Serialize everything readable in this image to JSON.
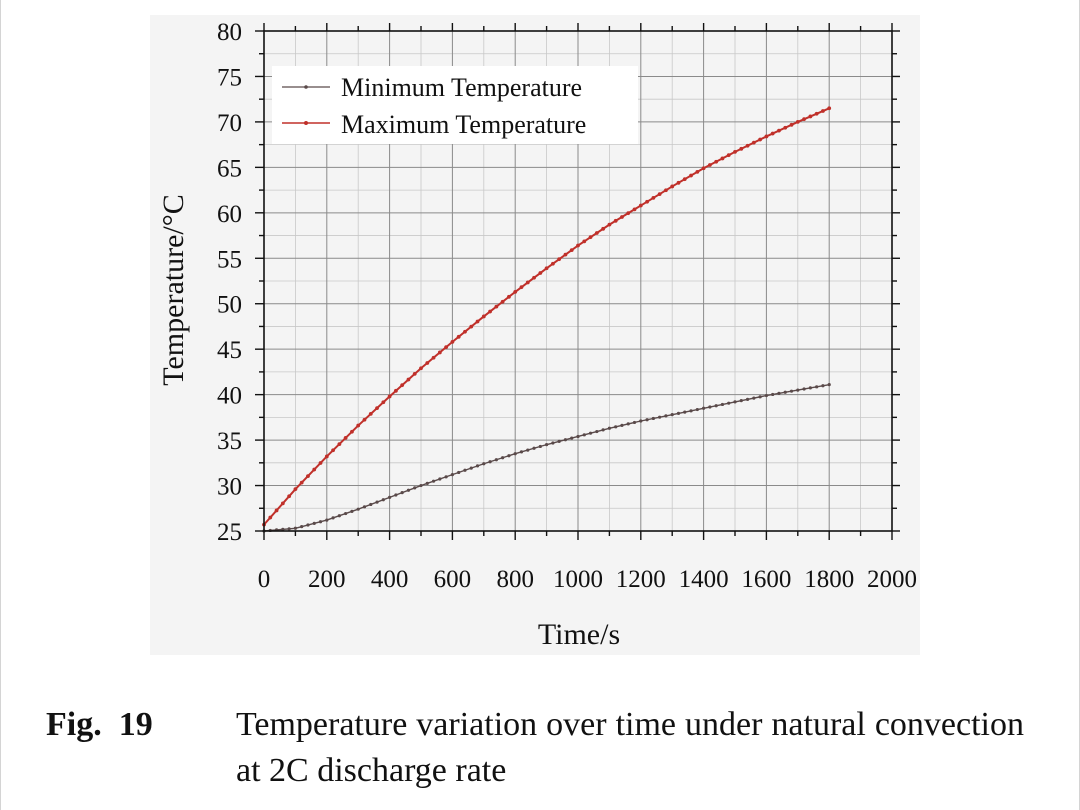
{
  "chart_data": {
    "type": "line",
    "title": "",
    "xlabel": "Time/s",
    "ylabel": "Temperature/°C",
    "xlim": [
      0,
      2000
    ],
    "ylim": [
      25,
      80
    ],
    "x_ticks": [
      "0",
      "200",
      "400",
      "600",
      "800",
      "1000",
      "1200",
      "1400",
      "1600",
      "1800",
      "2000"
    ],
    "y_ticks": [
      "25",
      "30",
      "35",
      "40",
      "45",
      "50",
      "55",
      "60",
      "65",
      "70",
      "75",
      "80"
    ],
    "grid": true,
    "legend_position": "top-left",
    "series": [
      {
        "name": "Minimum Temperature",
        "color": "#5a4a4a",
        "x": [
          0,
          100,
          200,
          300,
          400,
          500,
          600,
          700,
          800,
          900,
          1000,
          1100,
          1200,
          1300,
          1400,
          1500,
          1600,
          1700,
          1800
        ],
        "y": [
          25.0,
          25.3,
          26.2,
          27.4,
          28.7,
          30.0,
          31.2,
          32.4,
          33.5,
          34.5,
          35.4,
          36.3,
          37.1,
          37.8,
          38.5,
          39.2,
          39.9,
          40.5,
          41.1
        ]
      },
      {
        "name": "Maximum Temperature",
        "color": "#c0302a",
        "x": [
          0,
          100,
          200,
          300,
          400,
          500,
          600,
          700,
          800,
          900,
          1000,
          1100,
          1200,
          1300,
          1400,
          1500,
          1600,
          1700,
          1800
        ],
        "y": [
          25.7,
          29.6,
          33.2,
          36.6,
          39.8,
          42.9,
          45.8,
          48.6,
          51.3,
          53.9,
          56.4,
          58.7,
          60.8,
          62.9,
          64.9,
          66.7,
          68.4,
          70.0,
          71.5
        ]
      }
    ]
  },
  "caption": {
    "label": "Fig.  19",
    "text": "Temperature variation over time under natural convection at 2C discharge rate"
  }
}
